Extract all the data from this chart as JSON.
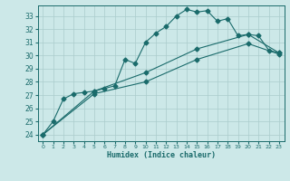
{
  "title": "",
  "xlabel": "Humidex (Indice chaleur)",
  "bg_color": "#cce8e8",
  "grid_color": "#aacccc",
  "line_color": "#1a6b6b",
  "xlim": [
    -0.5,
    23.5
  ],
  "ylim": [
    23.5,
    33.8
  ],
  "yticks": [
    24,
    25,
    26,
    27,
    28,
    29,
    30,
    31,
    32,
    33
  ],
  "xticks": [
    0,
    1,
    2,
    3,
    4,
    5,
    6,
    7,
    8,
    9,
    10,
    11,
    12,
    13,
    14,
    15,
    16,
    17,
    18,
    19,
    20,
    21,
    22,
    23
  ],
  "series": [
    {
      "x": [
        0,
        1,
        2,
        3,
        4,
        5,
        6,
        7,
        8,
        9,
        10,
        11,
        12,
        13,
        14,
        15,
        16,
        17,
        18,
        19,
        20,
        21,
        22,
        23
      ],
      "y": [
        24.0,
        25.0,
        26.7,
        27.1,
        27.2,
        27.3,
        27.5,
        27.7,
        29.7,
        29.4,
        31.0,
        31.7,
        32.2,
        33.0,
        33.5,
        33.3,
        33.4,
        32.6,
        32.8,
        31.5,
        31.6,
        31.5,
        30.4,
        30.2
      ],
      "marker": "D",
      "markersize": 2.5
    },
    {
      "x": [
        0,
        5,
        10,
        15,
        20,
        23
      ],
      "y": [
        24.0,
        27.3,
        28.7,
        30.5,
        31.6,
        30.2
      ],
      "marker": "D",
      "markersize": 2.5
    },
    {
      "x": [
        0,
        5,
        10,
        15,
        20,
        23
      ],
      "y": [
        24.0,
        27.1,
        28.0,
        29.7,
        30.9,
        30.1
      ],
      "marker": "D",
      "markersize": 2.5
    }
  ]
}
